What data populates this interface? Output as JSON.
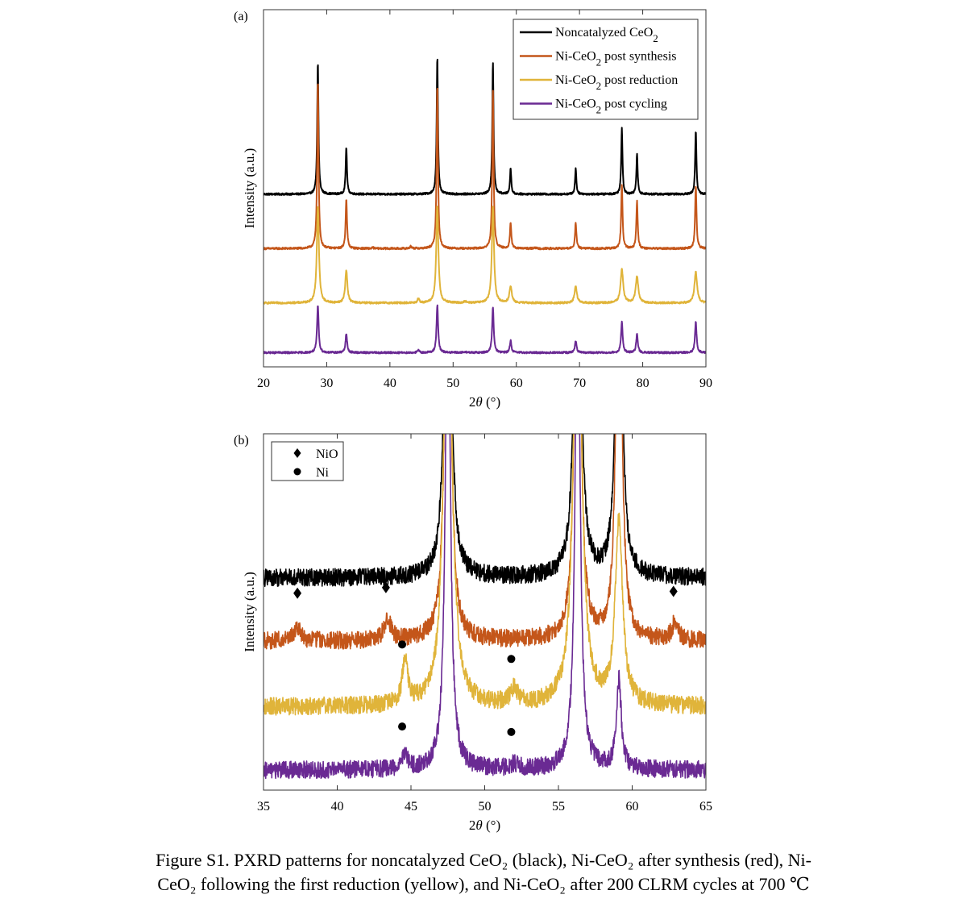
{
  "chart_data": [
    {
      "type": "line",
      "panel_label": "(a)",
      "xlabel": "2θ (°)",
      "ylabel": "Intensity (a.u.)",
      "xlim": [
        20,
        90
      ],
      "xticks": [
        "20",
        "30",
        "40",
        "50",
        "60",
        "70",
        "80",
        "90"
      ],
      "yticks_shown": false,
      "legend": {
        "placement": "top-right",
        "entries": [
          {
            "name": "Noncatalyzed CeO2",
            "base": "Noncatalyzed CeO",
            "sub": "2",
            "suffix": "",
            "color": "#000000"
          },
          {
            "name": "Ni-CeO2 post synthesis",
            "base": "Ni-CeO",
            "sub": "2",
            "suffix": " post synthesis",
            "color": "#c4561a"
          },
          {
            "name": "Ni-CeO2 post reduction",
            "base": "Ni-CeO",
            "sub": "2",
            "suffix": " post reduction",
            "color": "#e0b43a"
          },
          {
            "name": "Ni-CeO2 post cycling",
            "base": "Ni-CeO",
            "sub": "2",
            "suffix": " post cycling",
            "color": "#6a2a93"
          }
        ]
      },
      "series": [
        {
          "name": "Noncatalyzed CeO2",
          "color": "#000000",
          "baseline": 0.67,
          "noise": 0.004,
          "peaks": [
            [
              28.6,
              0.56,
              0.12
            ],
            [
              33.1,
              0.2,
              0.12
            ],
            [
              47.5,
              0.58,
              0.12
            ],
            [
              56.3,
              0.56,
              0.12
            ],
            [
              59.1,
              0.11,
              0.12
            ],
            [
              69.4,
              0.11,
              0.12
            ],
            [
              76.7,
              0.28,
              0.12
            ],
            [
              79.1,
              0.17,
              0.12
            ],
            [
              88.4,
              0.27,
              0.12
            ]
          ]
        },
        {
          "name": "Ni-CeO2 post synthesis",
          "color": "#c4561a",
          "baseline": 0.44,
          "noise": 0.004,
          "peaks": [
            [
              28.6,
              0.71,
              0.13
            ],
            [
              33.1,
              0.21,
              0.13
            ],
            [
              47.5,
              0.69,
              0.13
            ],
            [
              56.3,
              0.67,
              0.13
            ],
            [
              59.1,
              0.11,
              0.13
            ],
            [
              69.4,
              0.11,
              0.13
            ],
            [
              76.7,
              0.27,
              0.13
            ],
            [
              79.1,
              0.2,
              0.13
            ],
            [
              88.4,
              0.27,
              0.13
            ],
            [
              37.3,
              0.004,
              0.15
            ],
            [
              43.3,
              0.009,
              0.15
            ],
            [
              62.9,
              0.005,
              0.15
            ]
          ]
        },
        {
          "name": "Ni-CeO2 post reduction",
          "color": "#e0b43a",
          "baseline": 0.21,
          "noise": 0.004,
          "peaks": [
            [
              28.6,
              0.41,
              0.2
            ],
            [
              33.1,
              0.14,
              0.2
            ],
            [
              47.5,
              0.41,
              0.2
            ],
            [
              56.3,
              0.41,
              0.2
            ],
            [
              59.1,
              0.07,
              0.22
            ],
            [
              69.4,
              0.07,
              0.22
            ],
            [
              76.7,
              0.14,
              0.25
            ],
            [
              79.1,
              0.11,
              0.25
            ],
            [
              88.4,
              0.13,
              0.25
            ],
            [
              44.5,
              0.02,
              0.15
            ],
            [
              51.9,
              0.006,
              0.2
            ]
          ]
        },
        {
          "name": "Ni-CeO2 post cycling",
          "color": "#6a2a93",
          "baseline": 0.0,
          "noise": 0.004,
          "peaks": [
            [
              28.6,
              0.2,
              0.15
            ],
            [
              33.1,
              0.08,
              0.15
            ],
            [
              47.5,
              0.2,
              0.15
            ],
            [
              56.3,
              0.19,
              0.15
            ],
            [
              59.1,
              0.05,
              0.15
            ],
            [
              69.4,
              0.05,
              0.15
            ],
            [
              76.7,
              0.13,
              0.15
            ],
            [
              79.1,
              0.08,
              0.15
            ],
            [
              88.4,
              0.13,
              0.15
            ],
            [
              44.5,
              0.01,
              0.15
            ],
            [
              51.9,
              0.004,
              0.2
            ]
          ]
        }
      ]
    },
    {
      "type": "line",
      "panel_label": "(b)",
      "xlabel": "2θ (°)",
      "ylabel": "Intensity (a.u.)",
      "xlim": [
        35,
        65
      ],
      "xticks": [
        "35",
        "40",
        "45",
        "50",
        "55",
        "60",
        "65"
      ],
      "yticks_shown": false,
      "legend": {
        "placement": "top-left",
        "entries": [
          {
            "name": "NiO",
            "marker": "diamond"
          },
          {
            "name": "Ni",
            "marker": "circle"
          }
        ]
      },
      "series": [
        {
          "name": "Noncatalyzed CeO2",
          "color": "#000000",
          "baseline": 0.76,
          "noise": 0.035,
          "peaks": [
            [
              47.5,
              2.0,
              0.22
            ],
            [
              56.3,
              2.0,
              0.22
            ],
            [
              59.1,
              2.0,
              0.2
            ]
          ]
        },
        {
          "name": "Ni-CeO2 post synthesis",
          "color": "#c4561a",
          "baseline": 0.51,
          "noise": 0.035,
          "peaks": [
            [
              47.5,
              2.0,
              0.22
            ],
            [
              56.3,
              2.0,
              0.22
            ],
            [
              59.1,
              2.0,
              0.2
            ],
            [
              37.3,
              0.06,
              0.25
            ],
            [
              43.4,
              0.09,
              0.25
            ],
            [
              62.9,
              0.07,
              0.25
            ]
          ]
        },
        {
          "name": "Ni-CeO2 post reduction",
          "color": "#e0b43a",
          "baseline": 0.25,
          "noise": 0.035,
          "peaks": [
            [
              47.5,
              2.0,
              0.3
            ],
            [
              56.3,
              2.0,
              0.3
            ],
            [
              59.1,
              0.72,
              0.3
            ],
            [
              44.6,
              0.18,
              0.22
            ],
            [
              52.0,
              0.06,
              0.3
            ]
          ]
        },
        {
          "name": "Ni-CeO2 post cycling",
          "color": "#6a2a93",
          "baseline": 0.0,
          "noise": 0.035,
          "peaks": [
            [
              47.5,
              2.0,
              0.2
            ],
            [
              56.3,
              2.0,
              0.2
            ],
            [
              59.1,
              0.35,
              0.2
            ],
            [
              44.6,
              0.07,
              0.2
            ],
            [
              52.0,
              0.02,
              0.3
            ]
          ]
        }
      ],
      "markers": [
        {
          "type": "NiO",
          "x": 37.3,
          "series": "Ni-CeO2 post synthesis"
        },
        {
          "type": "NiO",
          "x": 43.3,
          "series": "Ni-CeO2 post synthesis"
        },
        {
          "type": "NiO",
          "x": 62.8,
          "series": "Ni-CeO2 post synthesis"
        },
        {
          "type": "Ni",
          "x": 44.4,
          "series": "Ni-CeO2 post reduction"
        },
        {
          "type": "Ni",
          "x": 51.8,
          "series": "Ni-CeO2 post reduction"
        },
        {
          "type": "Ni",
          "x": 44.4,
          "series": "Ni-CeO2 post cycling"
        },
        {
          "type": "Ni",
          "x": 51.8,
          "series": "Ni-CeO2 post cycling"
        }
      ]
    }
  ],
  "caption": {
    "line1": "Figure S1. PXRD patterns for noncatalyzed CeO₂ (black), Ni-CeO₂ after synthesis (red), Ni-",
    "line2": "CeO₂ following the first reduction (yellow), and Ni-CeO₂ after 200 CLRM cycles at 700 ℃"
  }
}
